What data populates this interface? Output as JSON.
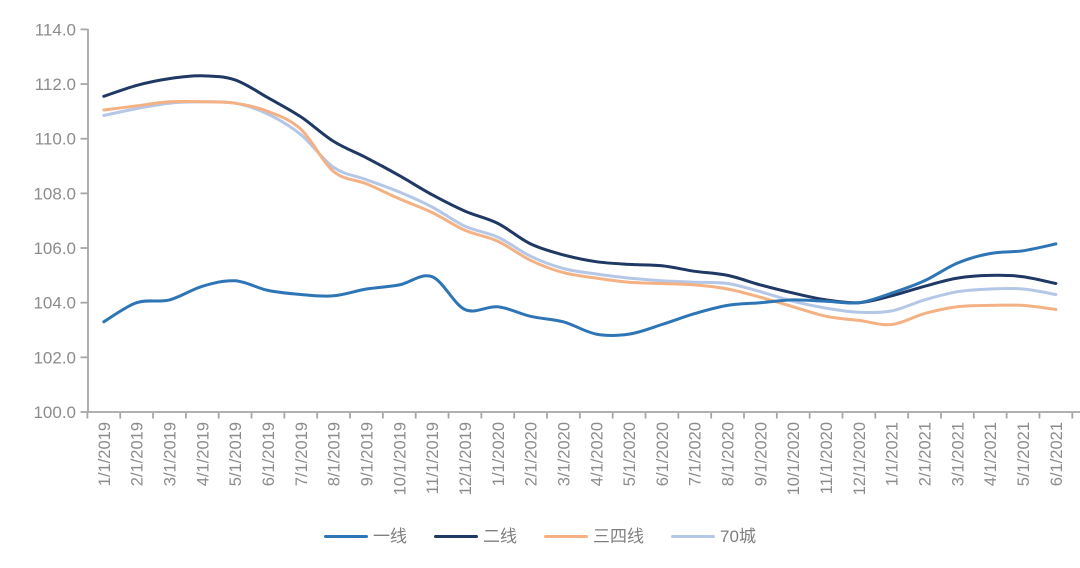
{
  "chart_data": {
    "type": "line",
    "title": "",
    "categories": [
      "1/1/2019",
      "2/1/2019",
      "3/1/2019",
      "4/1/2019",
      "5/1/2019",
      "6/1/2019",
      "7/1/2019",
      "8/1/2019",
      "9/1/2019",
      "10/1/2019",
      "11/1/2019",
      "12/1/2019",
      "1/1/2020",
      "2/1/2020",
      "3/1/2020",
      "4/1/2020",
      "5/1/2020",
      "6/1/2020",
      "7/1/2020",
      "8/1/2020",
      "9/1/2020",
      "10/1/2020",
      "11/1/2020",
      "12/1/2020",
      "1/1/2021",
      "2/1/2021",
      "3/1/2021",
      "4/1/2021",
      "5/1/2021",
      "6/1/2021"
    ],
    "series": [
      {
        "name": "一线",
        "color": "#2E75B6",
        "values": [
          103.3,
          104.0,
          104.1,
          104.6,
          104.8,
          104.45,
          104.3,
          104.25,
          104.5,
          104.65,
          104.95,
          103.75,
          103.85,
          103.5,
          103.3,
          102.85,
          102.85,
          103.2,
          103.6,
          103.9,
          104.0,
          104.1,
          104.05,
          104.0,
          104.35,
          104.8,
          105.45,
          105.8,
          105.9,
          106.15
        ]
      },
      {
        "name": "二线",
        "color": "#1F3864",
        "values": [
          111.55,
          111.95,
          112.2,
          112.3,
          112.15,
          111.5,
          110.8,
          109.9,
          109.3,
          108.65,
          107.95,
          107.35,
          106.9,
          106.15,
          105.75,
          105.5,
          105.4,
          105.35,
          105.15,
          105.0,
          104.65,
          104.35,
          104.1,
          104.0,
          104.25,
          104.6,
          104.9,
          105.0,
          104.95,
          104.7
        ]
      },
      {
        "name": "三四线",
        "color": "#F4B183",
        "values": [
          111.05,
          111.2,
          111.35,
          111.35,
          111.3,
          111.0,
          110.35,
          108.8,
          108.35,
          107.8,
          107.3,
          106.65,
          106.25,
          105.55,
          105.1,
          104.9,
          104.75,
          104.7,
          104.65,
          104.5,
          104.2,
          103.85,
          103.5,
          103.35,
          103.2,
          103.6,
          103.85,
          103.9,
          103.9,
          103.75
        ]
      },
      {
        "name": "70城",
        "color": "#B4C7E7",
        "values": [
          110.85,
          111.1,
          111.3,
          111.35,
          111.3,
          110.9,
          110.15,
          108.95,
          108.5,
          108.05,
          107.5,
          106.8,
          106.4,
          105.7,
          105.25,
          105.05,
          104.9,
          104.8,
          104.75,
          104.7,
          104.4,
          104.05,
          103.8,
          103.65,
          103.7,
          104.1,
          104.4,
          104.5,
          104.5,
          104.3
        ]
      }
    ],
    "ylim": [
      100.0,
      114.0
    ],
    "ytick_step": 2.0,
    "ytick_labels": [
      "100.0",
      "102.0",
      "104.0",
      "106.0",
      "108.0",
      "110.0",
      "112.0",
      "114.0"
    ],
    "grid": false,
    "legend_position": "bottom",
    "colors": {
      "axis": "#A6A6A6",
      "tick_label": "#8C8C8C",
      "legend_text": "#7F7F7F",
      "background": "#FFFFFF"
    }
  }
}
